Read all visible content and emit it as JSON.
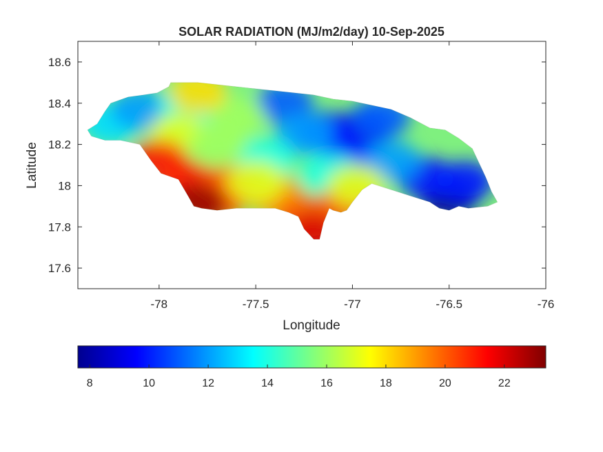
{
  "chart_data": {
    "type": "heatmap",
    "title": "SOLAR RADIATION (MJ/m2/day) 10-Sep-2025",
    "xlabel": "Longitude",
    "ylabel": "Latitude",
    "xlim": [
      -78.42,
      -76
    ],
    "ylim": [
      17.5,
      18.7
    ],
    "xticks": [
      -78,
      -77.5,
      -77,
      -76.5,
      -76
    ],
    "xtick_labels": [
      "-78",
      "-77.5",
      "-77",
      "-76.5",
      "-76"
    ],
    "yticks": [
      17.6,
      17.8,
      18,
      18.2,
      18.4,
      18.6
    ],
    "ytick_labels": [
      "17.6",
      "17.8",
      "18",
      "18.2",
      "18.4",
      "18.6"
    ],
    "grid": false,
    "colormap": "jet",
    "colorbar": {
      "orientation": "horizontal",
      "location": "below",
      "range": [
        7.6,
        23.4
      ],
      "ticks": [
        8,
        10,
        12,
        14,
        16,
        18,
        20,
        22
      ],
      "tick_labels": [
        "8",
        "10",
        "12",
        "14",
        "16",
        "18",
        "20",
        "22"
      ]
    },
    "region_outline": [
      [
        -78.37,
        18.27
      ],
      [
        -78.32,
        18.3
      ],
      [
        -78.28,
        18.36
      ],
      [
        -78.25,
        18.4
      ],
      [
        -78.16,
        18.43
      ],
      [
        -78.08,
        18.44
      ],
      [
        -78.01,
        18.45
      ],
      [
        -77.95,
        18.48
      ],
      [
        -77.94,
        18.5
      ],
      [
        -77.88,
        18.5
      ],
      [
        -77.8,
        18.5
      ],
      [
        -77.7,
        18.49
      ],
      [
        -77.6,
        18.48
      ],
      [
        -77.5,
        18.47
      ],
      [
        -77.4,
        18.46
      ],
      [
        -77.3,
        18.45
      ],
      [
        -77.2,
        18.44
      ],
      [
        -77.1,
        18.42
      ],
      [
        -77.0,
        18.41
      ],
      [
        -76.9,
        18.39
      ],
      [
        -76.8,
        18.37
      ],
      [
        -76.7,
        18.33
      ],
      [
        -76.6,
        18.28
      ],
      [
        -76.52,
        18.27
      ],
      [
        -76.45,
        18.23
      ],
      [
        -76.38,
        18.18
      ],
      [
        -76.34,
        18.1
      ],
      [
        -76.31,
        18.04
      ],
      [
        -76.28,
        17.97
      ],
      [
        -76.25,
        17.92
      ],
      [
        -76.3,
        17.9
      ],
      [
        -76.4,
        17.89
      ],
      [
        -76.45,
        17.9
      ],
      [
        -76.5,
        17.88
      ],
      [
        -76.55,
        17.89
      ],
      [
        -76.6,
        17.92
      ],
      [
        -76.7,
        17.95
      ],
      [
        -76.8,
        17.98
      ],
      [
        -76.9,
        18.01
      ],
      [
        -76.95,
        17.98
      ],
      [
        -77.0,
        17.92
      ],
      [
        -77.03,
        17.88
      ],
      [
        -77.06,
        17.87
      ],
      [
        -77.1,
        17.88
      ],
      [
        -77.12,
        17.89
      ],
      [
        -77.15,
        17.82
      ],
      [
        -77.17,
        17.74
      ],
      [
        -77.2,
        17.74
      ],
      [
        -77.25,
        17.79
      ],
      [
        -77.28,
        17.85
      ],
      [
        -77.33,
        17.87
      ],
      [
        -77.4,
        17.89
      ],
      [
        -77.48,
        17.89
      ],
      [
        -77.55,
        17.89
      ],
      [
        -77.6,
        17.89
      ],
      [
        -77.7,
        17.88
      ],
      [
        -77.78,
        17.89
      ],
      [
        -77.82,
        17.9
      ],
      [
        -77.85,
        17.95
      ],
      [
        -77.9,
        18.03
      ],
      [
        -77.99,
        18.06
      ],
      [
        -78.04,
        18.12
      ],
      [
        -78.1,
        18.2
      ],
      [
        -78.2,
        18.22
      ],
      [
        -78.28,
        18.22
      ],
      [
        -78.35,
        18.24
      ]
    ],
    "field_centers": [
      {
        "lon": -76.5,
        "lat": 17.94,
        "value": 8
      },
      {
        "lon": -76.62,
        "lat": 18.04,
        "value": 10
      },
      {
        "lon": -76.42,
        "lat": 18.02,
        "value": 10
      },
      {
        "lon": -76.95,
        "lat": 18.27,
        "value": 9
      },
      {
        "lon": -77.14,
        "lat": 18.26,
        "value": 10
      },
      {
        "lon": -77.02,
        "lat": 18.15,
        "value": 10
      },
      {
        "lon": -77.35,
        "lat": 18.4,
        "value": 11
      },
      {
        "lon": -76.85,
        "lat": 18.33,
        "value": 11
      },
      {
        "lon": -77.25,
        "lat": 18.25,
        "value": 12
      },
      {
        "lon": -76.8,
        "lat": 18.12,
        "value": 12
      },
      {
        "lon": -77.45,
        "lat": 18.13,
        "value": 14
      },
      {
        "lon": -77.12,
        "lat": 18.06,
        "value": 14
      },
      {
        "lon": -78.25,
        "lat": 18.3,
        "value": 13
      },
      {
        "lon": -78.1,
        "lat": 18.37,
        "value": 12
      },
      {
        "lon": -77.85,
        "lat": 18.38,
        "value": 14
      },
      {
        "lon": -77.9,
        "lat": 18.25,
        "value": 17
      },
      {
        "lon": -77.7,
        "lat": 18.2,
        "value": 16
      },
      {
        "lon": -77.6,
        "lat": 18.33,
        "value": 16
      },
      {
        "lon": -77.8,
        "lat": 18.45,
        "value": 18
      },
      {
        "lon": -78.0,
        "lat": 18.12,
        "value": 21
      },
      {
        "lon": -77.85,
        "lat": 18.02,
        "value": 21
      },
      {
        "lon": -77.62,
        "lat": 18.0,
        "value": 20
      },
      {
        "lon": -77.7,
        "lat": 17.93,
        "value": 20
      },
      {
        "lon": -77.8,
        "lat": 17.91,
        "value": 23
      },
      {
        "lon": -77.4,
        "lat": 17.95,
        "value": 19
      },
      {
        "lon": -77.25,
        "lat": 17.85,
        "value": 20
      },
      {
        "lon": -77.2,
        "lat": 17.77,
        "value": 22
      },
      {
        "lon": -77.02,
        "lat": 17.92,
        "value": 20
      },
      {
        "lon": -76.98,
        "lat": 18.0,
        "value": 17
      },
      {
        "lon": -77.5,
        "lat": 18.02,
        "value": 17
      }
    ]
  }
}
